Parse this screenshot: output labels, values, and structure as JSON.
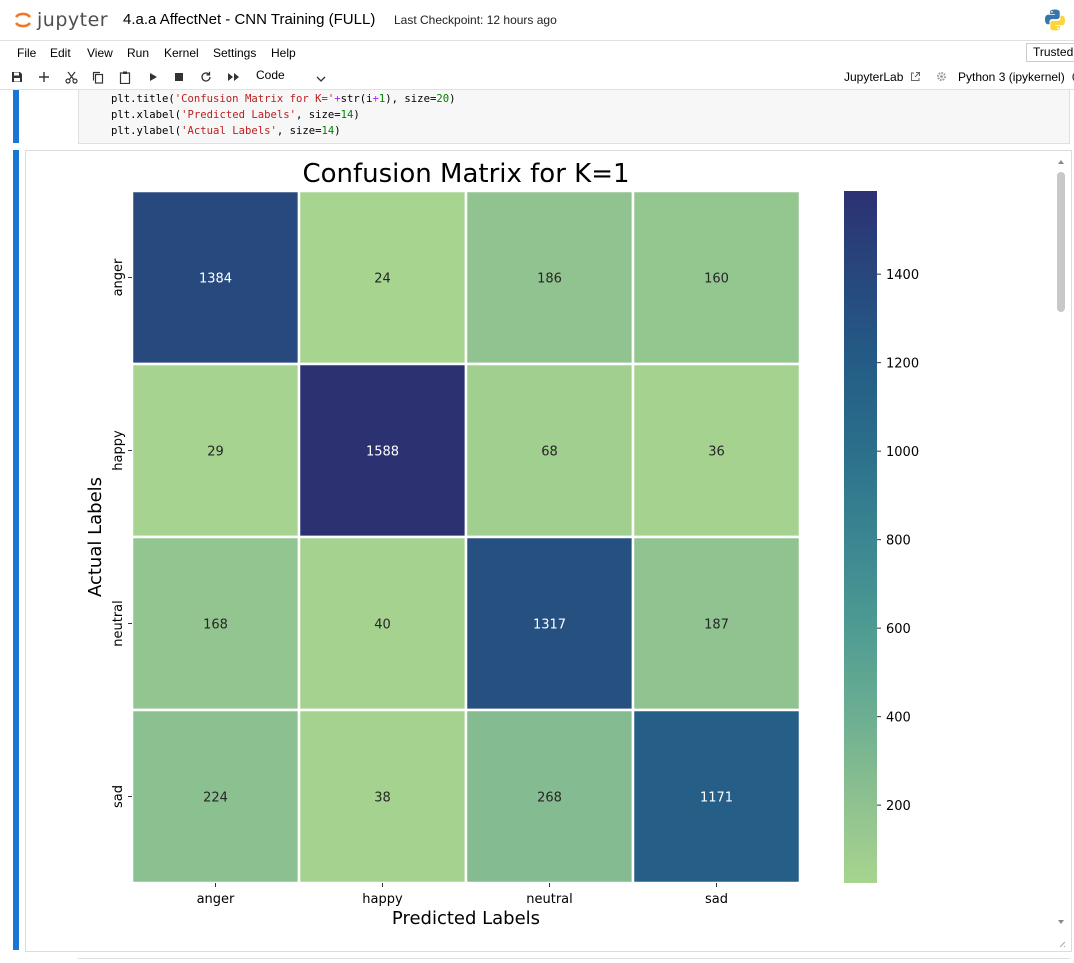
{
  "header": {
    "logo_text": "jupyter",
    "notebook_title": "4.a.a AffectNet - CNN Training (FULL)",
    "checkpoint": "Last Checkpoint: 12 hours ago",
    "python_icon": "python-logo-icon"
  },
  "menu": {
    "items": [
      "File",
      "Edit",
      "View",
      "Run",
      "Kernel",
      "Settings",
      "Help"
    ],
    "trusted": "Trusted"
  },
  "toolbar": {
    "icons": [
      "save-icon",
      "add-cell-icon",
      "cut-icon",
      "copy-icon",
      "paste-icon",
      "run-icon",
      "stop-icon",
      "restart-icon",
      "run-all-icon"
    ],
    "cell_type": "Code",
    "jupyterlab": "JupyterLab",
    "kernel": "Python 3 (ipykernel)"
  },
  "code": {
    "lines": [
      [
        {
          "t": "plt.title(",
          "c": ""
        },
        {
          "t": "'Confusion Matrix for K='",
          "c": "s"
        },
        {
          "t": "+",
          "c": "o"
        },
        {
          "t": "str(i",
          "c": ""
        },
        {
          "t": "+",
          "c": "o"
        },
        {
          "t": "1",
          "c": "n"
        },
        {
          "t": "), size=",
          "c": ""
        },
        {
          "t": "20",
          "c": "n"
        },
        {
          "t": ")",
          "c": ""
        }
      ],
      [
        {
          "t": "plt.xlabel(",
          "c": ""
        },
        {
          "t": "'Predicted Labels'",
          "c": "s"
        },
        {
          "t": ", size=",
          "c": ""
        },
        {
          "t": "14",
          "c": "n"
        },
        {
          "t": ")",
          "c": ""
        }
      ],
      [
        {
          "t": "plt.ylabel(",
          "c": ""
        },
        {
          "t": "'Actual Labels'",
          "c": "s"
        },
        {
          "t": ", size=",
          "c": ""
        },
        {
          "t": "14",
          "c": "n"
        },
        {
          "t": ")",
          "c": ""
        }
      ]
    ]
  },
  "chart_data": {
    "type": "heatmap",
    "title": "Confusion Matrix for K=1",
    "xlabel": "Predicted Labels",
    "ylabel": "Actual Labels",
    "x_categories": [
      "anger",
      "happy",
      "neutral",
      "sad"
    ],
    "y_categories": [
      "anger",
      "happy",
      "neutral",
      "sad"
    ],
    "values": [
      [
        1384,
        24,
        186,
        160
      ],
      [
        29,
        1588,
        68,
        36
      ],
      [
        168,
        40,
        1317,
        187
      ],
      [
        224,
        38,
        268,
        1171
      ]
    ],
    "colormap": "YlGnBu-crest",
    "colormap_stops": [
      "#a7d48f",
      "#8cc090",
      "#6aad92",
      "#4d9a93",
      "#3a8591",
      "#2b6f8b",
      "#245c86",
      "#27487d",
      "#2c3172"
    ],
    "colorbar_ticks": [
      200,
      400,
      600,
      800,
      1000,
      1200,
      1400
    ],
    "vmin": 24,
    "vmax": 1588
  }
}
